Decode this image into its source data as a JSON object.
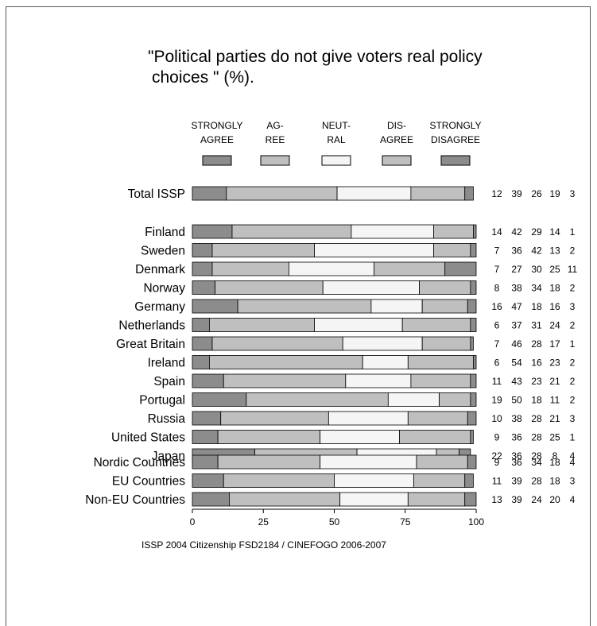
{
  "chart_data": {
    "type": "bar",
    "stacked": true,
    "orientation": "horizontal",
    "title_line1": "\"Political parties do not give voters real policy",
    "title_line2": "choices \" (%).",
    "legend": [
      {
        "line1": "STRONGLY",
        "line2": "AGREE",
        "color": "#8c8c8c"
      },
      {
        "line1": "AG-",
        "line2": "REE",
        "color": "#bfbfbf"
      },
      {
        "line1": "NEUT-",
        "line2": "RAL",
        "color": "#f5f5f5"
      },
      {
        "line1": "DIS-",
        "line2": "AGREE",
        "color": "#bfbfbf"
      },
      {
        "line1": "STRONGLY",
        "line2": "DISAGREE",
        "color": "#8c8c8c"
      }
    ],
    "groups": [
      [
        "Total ISSP"
      ],
      [
        "Finland",
        "Sweden",
        "Denmark",
        "Norway",
        "Germany",
        "Netherlands",
        "Great Britain",
        "Ireland",
        "Spain",
        "Portugal",
        "Russia",
        "United States",
        "Japan"
      ],
      [
        "Nordic Countries",
        "EU Countries",
        "Non-EU Countries"
      ]
    ],
    "categories": [
      "Total ISSP",
      "Finland",
      "Sweden",
      "Denmark",
      "Norway",
      "Germany",
      "Netherlands",
      "Great Britain",
      "Ireland",
      "Spain",
      "Portugal",
      "Russia",
      "United States",
      "Japan",
      "Nordic Countries",
      "EU Countries",
      "Non-EU Countries"
    ],
    "series": [
      {
        "name": "STRONGLY AGREE",
        "values": [
          12,
          14,
          7,
          7,
          8,
          16,
          6,
          7,
          6,
          11,
          19,
          10,
          9,
          22,
          9,
          11,
          13
        ]
      },
      {
        "name": "AGREE",
        "values": [
          39,
          42,
          36,
          27,
          38,
          47,
          37,
          46,
          54,
          43,
          50,
          38,
          36,
          36,
          36,
          39,
          39
        ]
      },
      {
        "name": "NEUTRAL",
        "values": [
          26,
          29,
          42,
          30,
          34,
          18,
          31,
          28,
          16,
          23,
          18,
          28,
          28,
          28,
          34,
          28,
          24
        ]
      },
      {
        "name": "DISAGREE",
        "values": [
          19,
          14,
          13,
          25,
          18,
          16,
          24,
          17,
          23,
          21,
          11,
          21,
          25,
          8,
          18,
          18,
          20
        ]
      },
      {
        "name": "STRONGLY DISAGREE",
        "values": [
          3,
          1,
          2,
          11,
          2,
          3,
          2,
          1,
          2,
          2,
          2,
          3,
          1,
          4,
          4,
          3,
          4
        ]
      }
    ],
    "xlim": [
      0,
      100
    ],
    "xticks": [
      "0",
      "25",
      "50",
      "75",
      "100"
    ],
    "source": "ISSP 2004  Citizenship  FSD2184 / CINEFOGO 2006-2007"
  }
}
